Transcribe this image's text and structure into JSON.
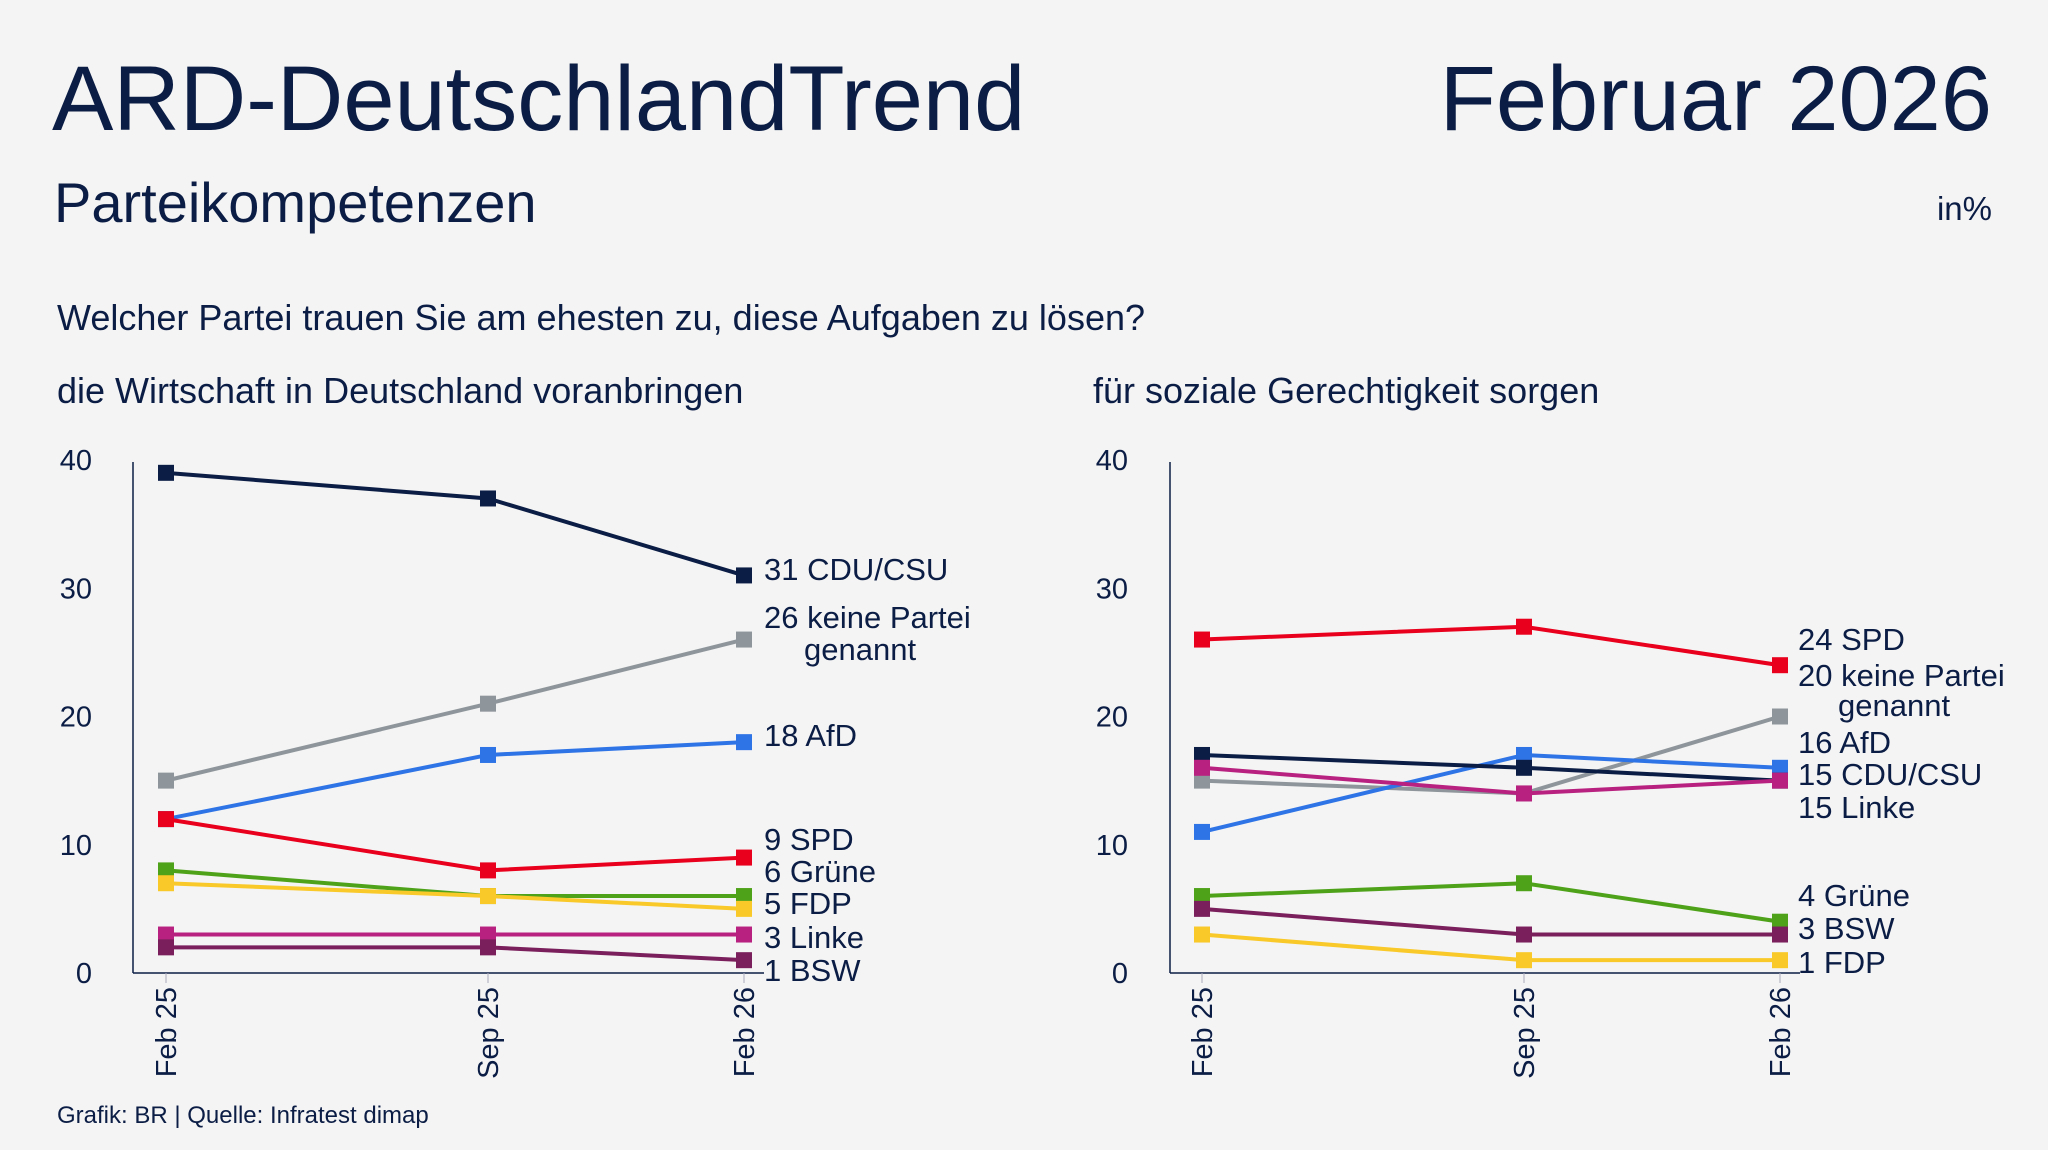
{
  "header": {
    "title": "ARD-DeutschlandTrend",
    "date": "Februar 2026",
    "subtitle": "Parteikompetenzen",
    "unit": "in%"
  },
  "question": "Welcher Partei trauen Sie am ehesten zu, diese Aufgaben zu lösen?",
  "footer": "Grafik: BR | Quelle: Infratest dimap",
  "chart_data": [
    {
      "type": "line",
      "title": "die Wirtschaft in Deutschland voranbringen",
      "categories": [
        "Feb 25",
        "Sep 25",
        "Feb 26"
      ],
      "ylim": [
        0,
        40
      ],
      "yticks": [
        "0",
        "10",
        "20",
        "30",
        "40"
      ],
      "grid": false,
      "series": [
        {
          "name": "CDU/CSU",
          "color": "#0b1d45",
          "values": [
            39,
            37,
            31
          ]
        },
        {
          "name": "keine Partei genannt",
          "color": "#8f969b",
          "values": [
            15,
            21,
            26
          ]
        },
        {
          "name": "AfD",
          "color": "#2f74e6",
          "values": [
            12,
            17,
            18
          ]
        },
        {
          "name": "SPD",
          "color": "#e8001c",
          "values": [
            12,
            8,
            9
          ]
        },
        {
          "name": "Grüne",
          "color": "#4ea21a",
          "values": [
            8,
            6,
            6
          ]
        },
        {
          "name": "FDP",
          "color": "#f9c829",
          "values": [
            7,
            6,
            5
          ]
        },
        {
          "name": "Linke",
          "color": "#b8217f",
          "values": [
            3,
            3,
            3
          ]
        },
        {
          "name": "BSW",
          "color": "#7a1f5c",
          "values": [
            2,
            2,
            1
          ]
        }
      ]
    },
    {
      "type": "line",
      "title": "für soziale Gerechtigkeit sorgen",
      "categories": [
        "Feb 25",
        "Sep 25",
        "Feb 26"
      ],
      "ylim": [
        0,
        40
      ],
      "yticks": [
        "0",
        "10",
        "20",
        "30",
        "40"
      ],
      "grid": false,
      "series": [
        {
          "name": "SPD",
          "color": "#e8001c",
          "values": [
            26,
            27,
            24
          ]
        },
        {
          "name": "keine Partei genannt",
          "color": "#8f969b",
          "values": [
            15,
            14,
            20
          ]
        },
        {
          "name": "AfD",
          "color": "#2f74e6",
          "values": [
            11,
            17,
            16
          ]
        },
        {
          "name": "CDU/CSU",
          "color": "#0b1d45",
          "values": [
            17,
            16,
            15
          ]
        },
        {
          "name": "Linke",
          "color": "#b8217f",
          "values": [
            16,
            14,
            15
          ]
        },
        {
          "name": "Grüne",
          "color": "#4ea21a",
          "values": [
            6,
            7,
            4
          ]
        },
        {
          "name": "BSW",
          "color": "#7a1f5c",
          "values": [
            5,
            3,
            3
          ]
        },
        {
          "name": "FDP",
          "color": "#f9c829",
          "values": [
            3,
            1,
            1
          ]
        }
      ]
    }
  ]
}
